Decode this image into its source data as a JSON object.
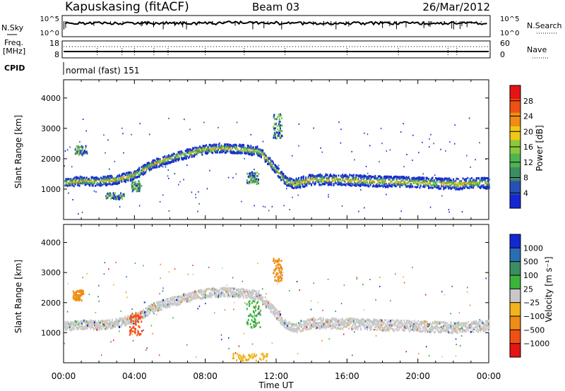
{
  "header": {
    "station": "Kapuskasing (fitACF)",
    "beam": "Beam 03",
    "date": "26/Mar/2012"
  },
  "noise_panel": {
    "left_label": "N.Sky",
    "right_label": "N.Search",
    "left_ticks": [
      "10^5",
      "10^0"
    ],
    "right_ticks": [
      "10^5",
      "10^0"
    ]
  },
  "freq_panel": {
    "left_label": "Freq.",
    "left_unit": "[MHz]",
    "right_label": "Nave",
    "left_ticks": [
      "18",
      "8"
    ],
    "right_ticks": [
      "60",
      "0"
    ]
  },
  "cpid_panel": {
    "label": "CPID",
    "value": "normal (fast) 151"
  },
  "colors": {
    "power": [
      "#1428d2",
      "#2850b4",
      "#3c8c64",
      "#50b450",
      "#8cc83c",
      "#f0c814",
      "#f08c14",
      "#f05014",
      "#e61414"
    ],
    "velocity": [
      "#1428d2",
      "#286eb4",
      "#3c8c64",
      "#3cb43c",
      "#c8c8c8",
      "#f0b41e",
      "#f08c14",
      "#f05014",
      "#e61414"
    ]
  },
  "chart_data": [
    {
      "type": "heatmap",
      "name": "power",
      "ylabel": "Slant Range [km]",
      "xlabel": "",
      "ylim": [
        0,
        4600
      ],
      "xlim": [
        0,
        24
      ],
      "y_ticks": [
        "1000",
        "2000",
        "3000",
        "4000"
      ],
      "colorbar_label": "Power [dB]",
      "colorbar_ticks": [
        "4",
        "8",
        "12",
        "16",
        "20",
        "24",
        "28"
      ],
      "colorbar_range": [
        0,
        32
      ],
      "trace": {
        "hours": [
          0.1,
          1.0,
          2.0,
          3.0,
          4.0,
          5.0,
          6.0,
          7.0,
          8.0,
          9.0,
          10.0,
          10.6,
          11.0,
          11.5,
          12.0,
          12.5,
          13.0,
          14.0,
          16.0,
          18.0,
          20.0,
          22.0,
          23.9
        ],
        "range_km": [
          1250,
          1300,
          1280,
          1350,
          1500,
          1850,
          2050,
          2200,
          2350,
          2380,
          2350,
          2300,
          2280,
          2000,
          1650,
          1300,
          1200,
          1350,
          1330,
          1280,
          1250,
          1200,
          1250
        ]
      },
      "patches": [
        {
          "hours": [
            0.6,
            1.3
          ],
          "range_km": [
            2150,
            2450
          ]
        },
        {
          "hours": [
            3.8,
            4.3
          ],
          "range_km": [
            950,
            1300
          ]
        },
        {
          "hours": [
            2.3,
            3.4
          ],
          "range_km": [
            700,
            900
          ]
        },
        {
          "hours": [
            10.3,
            11.0
          ],
          "range_km": [
            1200,
            1600
          ]
        },
        {
          "hours": [
            11.8,
            12.3
          ],
          "range_km": [
            2700,
            3500
          ]
        }
      ]
    },
    {
      "type": "heatmap",
      "name": "velocity",
      "ylabel": "Slant Range [km]",
      "xlabel": "Time UT",
      "ylim": [
        0,
        4600
      ],
      "xlim": [
        0,
        24
      ],
      "x_ticks": [
        "00:00",
        "04:00",
        "08:00",
        "12:00",
        "16:00",
        "20:00",
        "00:00"
      ],
      "y_ticks": [
        "1000",
        "2000",
        "3000",
        "4000"
      ],
      "colorbar_label": "Velocity [m s⁻¹]",
      "colorbar_ticks": [
        "1000",
        "500",
        "100",
        "25",
        "−25",
        "−100",
        "−500",
        "−1000"
      ],
      "patches": [
        {
          "hours": [
            0.5,
            1.1
          ],
          "range_km": [
            2100,
            2450
          ],
          "color_index": 6
        },
        {
          "hours": [
            3.7,
            4.4
          ],
          "range_km": [
            950,
            1700
          ],
          "color_index": 7
        },
        {
          "hours": [
            10.3,
            11.1
          ],
          "range_km": [
            1200,
            2100
          ],
          "color_index": 3
        },
        {
          "hours": [
            11.8,
            12.3
          ],
          "range_km": [
            2700,
            3500
          ],
          "color_index": 6
        },
        {
          "hours": [
            9.5,
            11.5
          ],
          "range_km": [
            100,
            350
          ],
          "color_index": 5
        }
      ]
    }
  ]
}
